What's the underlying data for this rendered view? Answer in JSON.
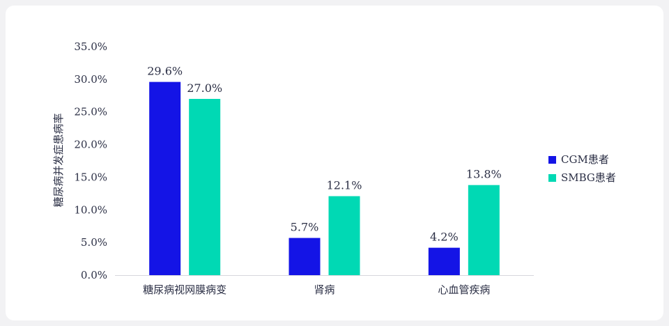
{
  "chart_data": {
    "type": "bar",
    "title": "",
    "xlabel": "",
    "ylabel": "糖尿病并发症患病率",
    "ylim": [
      0,
      35
    ],
    "yticks": [
      "0.0%",
      "5.0%",
      "10.0%",
      "15.0%",
      "20.0%",
      "25.0%",
      "30.0%",
      "35.0%"
    ],
    "categories": [
      "糖尿病视网膜病变",
      "肾病",
      "心血管疾病"
    ],
    "series": [
      {
        "name": "CGM患者",
        "color": "#1414e6",
        "values": [
          29.6,
          5.7,
          4.2
        ],
        "labels": [
          "29.6%",
          "5.7%",
          "4.2%"
        ]
      },
      {
        "name": "SMBG患者",
        "color": "#00d9b4",
        "values": [
          27.0,
          12.1,
          13.8
        ],
        "labels": [
          "27.0%",
          "12.1%",
          "13.8%"
        ]
      }
    ],
    "grid": false,
    "legend_position": "right"
  }
}
